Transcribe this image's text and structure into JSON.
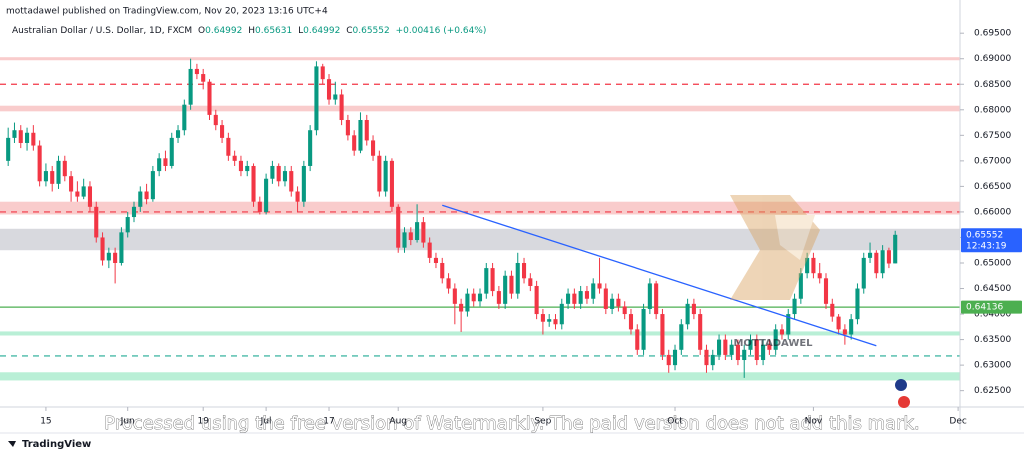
{
  "header": {
    "published": "mottadawel published on TradingView.com, Nov 20, 2023 13:16 UTC+4",
    "logo": "TradingView",
    "watermark": "Processed using the free version of Watermarkly. The paid version does not add this mark."
  },
  "chart_data": {
    "type": "candlestick",
    "symbol": "Australian Dollar / U.S. Dollar, 1D, FXCM",
    "ohlc_letters": [
      "O",
      "H",
      "L",
      "C"
    ],
    "change_label": "+0.00416 (+0.64%)",
    "brand": "MOTTADAWEL",
    "up_color": "#089981",
    "down_color": "#f23645",
    "xlim": [
      -1.3,
      151.3
    ],
    "xticks": [
      {
        "value": 6,
        "label": "15"
      },
      {
        "value": 19,
        "label": "Jun"
      },
      {
        "value": 31,
        "label": "19"
      },
      {
        "value": 41,
        "label": "Jul"
      },
      {
        "value": 51,
        "label": "17"
      },
      {
        "value": 62,
        "label": "Aug"
      },
      {
        "value": 85,
        "label": "Sep"
      },
      {
        "value": 106,
        "label": "Oct"
      },
      {
        "value": 128,
        "label": "Nov"
      },
      {
        "value": 151,
        "label": "Dec"
      }
    ],
    "ylim": [
      0.6218,
      0.7015
    ],
    "yticks": [
      {
        "value": 0.625,
        "label": "0.62500"
      },
      {
        "value": 0.63,
        "label": "0.63000"
      },
      {
        "value": 0.635,
        "label": "0.63500"
      },
      {
        "value": 0.64,
        "label": "0.64000"
      },
      {
        "value": 0.645,
        "label": "0.64500"
      },
      {
        "value": 0.65,
        "label": "0.65000"
      },
      {
        "value": 0.655,
        "label": "0.65500"
      },
      {
        "value": 0.66,
        "label": "0.66000"
      },
      {
        "value": 0.665,
        "label": "0.66500"
      },
      {
        "value": 0.67,
        "label": "0.67000"
      },
      {
        "value": 0.675,
        "label": "0.67500"
      },
      {
        "value": 0.68,
        "label": "0.68000"
      },
      {
        "value": 0.685,
        "label": "0.68500"
      },
      {
        "value": 0.69,
        "label": "0.69000"
      },
      {
        "value": 0.695,
        "label": "0.69500"
      }
    ],
    "zones": [
      {
        "from": 0.6897,
        "to": 0.6903,
        "color": "#f9cccc"
      },
      {
        "from": 0.6797,
        "to": 0.6808,
        "color": "#f9cccc"
      },
      {
        "from": 0.6595,
        "to": 0.662,
        "color": "#f9cccc"
      },
      {
        "from": 0.6525,
        "to": 0.6567,
        "color": "#d8d9de"
      },
      {
        "from": 0.6358,
        "to": 0.6366,
        "color": "#b9efd6"
      },
      {
        "from": 0.627,
        "to": 0.6286,
        "color": "#b9efd6"
      }
    ],
    "levels": [
      {
        "value": 0.685,
        "color": "#f23645",
        "dashed": true
      },
      {
        "value": 0.66,
        "color": "#f23645",
        "dashed": true
      },
      {
        "value": 0.64136,
        "color": "#4caf50",
        "dashed": false
      },
      {
        "value": 0.6318,
        "color": "#22ab94",
        "dashed": true
      }
    ],
    "trendline": {
      "x": [
        69,
        138
      ],
      "y": [
        0.6613,
        0.6338
      ],
      "color": "#2962ff"
    },
    "price_labels": [
      {
        "value": 0.65552,
        "countdown": "12:43:19",
        "color": "#2962ff"
      },
      {
        "value": 0.64136,
        "color": "#4caf50"
      }
    ],
    "candles": [
      [
        0.67,
        0.6765,
        0.669,
        0.6745
      ],
      [
        0.6745,
        0.6775,
        0.6735,
        0.676
      ],
      [
        0.676,
        0.677,
        0.6725,
        0.6735
      ],
      [
        0.6735,
        0.6765,
        0.672,
        0.6755
      ],
      [
        0.6755,
        0.677,
        0.672,
        0.673
      ],
      [
        0.673,
        0.674,
        0.665,
        0.666
      ],
      [
        0.666,
        0.6695,
        0.665,
        0.668
      ],
      [
        0.668,
        0.669,
        0.664,
        0.6655
      ],
      [
        0.6655,
        0.671,
        0.6645,
        0.67
      ],
      [
        0.67,
        0.671,
        0.666,
        0.667
      ],
      [
        0.667,
        0.668,
        0.662,
        0.664
      ],
      [
        0.664,
        0.666,
        0.662,
        0.663
      ],
      [
        0.663,
        0.6665,
        0.6625,
        0.665
      ],
      [
        0.665,
        0.666,
        0.66,
        0.661
      ],
      [
        0.661,
        0.662,
        0.654,
        0.655
      ],
      [
        0.655,
        0.656,
        0.6495,
        0.6505
      ],
      [
        0.6505,
        0.653,
        0.649,
        0.652
      ],
      [
        0.652,
        0.653,
        0.646,
        0.65
      ],
      [
        0.65,
        0.657,
        0.6495,
        0.656
      ],
      [
        0.656,
        0.66,
        0.655,
        0.659
      ],
      [
        0.659,
        0.662,
        0.658,
        0.661
      ],
      [
        0.661,
        0.665,
        0.66,
        0.664
      ],
      [
        0.664,
        0.6655,
        0.6615,
        0.6625
      ],
      [
        0.6625,
        0.669,
        0.662,
        0.668
      ],
      [
        0.668,
        0.6715,
        0.667,
        0.6705
      ],
      [
        0.6705,
        0.672,
        0.668,
        0.669
      ],
      [
        0.669,
        0.6755,
        0.6685,
        0.6745
      ],
      [
        0.6745,
        0.677,
        0.6735,
        0.676
      ],
      [
        0.676,
        0.682,
        0.675,
        0.681
      ],
      [
        0.681,
        0.69,
        0.68,
        0.688
      ],
      [
        0.688,
        0.689,
        0.686,
        0.687
      ],
      [
        0.687,
        0.688,
        0.684,
        0.6855
      ],
      [
        0.6855,
        0.686,
        0.678,
        0.679
      ],
      [
        0.679,
        0.68,
        0.676,
        0.677
      ],
      [
        0.677,
        0.678,
        0.6735,
        0.6745
      ],
      [
        0.6745,
        0.6755,
        0.67,
        0.671
      ],
      [
        0.671,
        0.672,
        0.669,
        0.67
      ],
      [
        0.67,
        0.671,
        0.667,
        0.668
      ],
      [
        0.668,
        0.67,
        0.667,
        0.669
      ],
      [
        0.669,
        0.6695,
        0.661,
        0.662
      ],
      [
        0.662,
        0.663,
        0.6595,
        0.66
      ],
      [
        0.66,
        0.6675,
        0.6595,
        0.6665
      ],
      [
        0.6665,
        0.67,
        0.6655,
        0.669
      ],
      [
        0.669,
        0.6695,
        0.665,
        0.666
      ],
      [
        0.666,
        0.669,
        0.665,
        0.668
      ],
      [
        0.668,
        0.669,
        0.663,
        0.664
      ],
      [
        0.664,
        0.665,
        0.66,
        0.662
      ],
      [
        0.662,
        0.67,
        0.661,
        0.669
      ],
      [
        0.669,
        0.677,
        0.668,
        0.676
      ],
      [
        0.676,
        0.6895,
        0.675,
        0.6885
      ],
      [
        0.6885,
        0.689,
        0.685,
        0.686
      ],
      [
        0.686,
        0.687,
        0.681,
        0.682
      ],
      [
        0.682,
        0.6855,
        0.681,
        0.683
      ],
      [
        0.683,
        0.684,
        0.677,
        0.678
      ],
      [
        0.678,
        0.679,
        0.674,
        0.675
      ],
      [
        0.675,
        0.676,
        0.671,
        0.672
      ],
      [
        0.672,
        0.6795,
        0.6715,
        0.678
      ],
      [
        0.678,
        0.679,
        0.673,
        0.674
      ],
      [
        0.674,
        0.675,
        0.67,
        0.671
      ],
      [
        0.671,
        0.672,
        0.663,
        0.664
      ],
      [
        0.664,
        0.671,
        0.663,
        0.67
      ],
      [
        0.67,
        0.6705,
        0.66,
        0.661
      ],
      [
        0.661,
        0.6615,
        0.652,
        0.653
      ],
      [
        0.653,
        0.657,
        0.652,
        0.656
      ],
      [
        0.656,
        0.657,
        0.6535,
        0.6545
      ],
      [
        0.6545,
        0.6615,
        0.654,
        0.658
      ],
      [
        0.658,
        0.659,
        0.653,
        0.654
      ],
      [
        0.654,
        0.655,
        0.65,
        0.651
      ],
      [
        0.651,
        0.652,
        0.649,
        0.65
      ],
      [
        0.65,
        0.651,
        0.646,
        0.647
      ],
      [
        0.647,
        0.648,
        0.644,
        0.645
      ],
      [
        0.645,
        0.646,
        0.638,
        0.642
      ],
      [
        0.642,
        0.643,
        0.6365,
        0.6405
      ],
      [
        0.6405,
        0.645,
        0.6395,
        0.644
      ],
      [
        0.644,
        0.645,
        0.6415,
        0.6425
      ],
      [
        0.6425,
        0.645,
        0.6415,
        0.644
      ],
      [
        0.644,
        0.65,
        0.643,
        0.649
      ],
      [
        0.649,
        0.65,
        0.6435,
        0.6445
      ],
      [
        0.6445,
        0.6455,
        0.641,
        0.642
      ],
      [
        0.642,
        0.6485,
        0.641,
        0.6475
      ],
      [
        0.6475,
        0.6485,
        0.643,
        0.644
      ],
      [
        0.644,
        0.652,
        0.643,
        0.65
      ],
      [
        0.65,
        0.651,
        0.646,
        0.647
      ],
      [
        0.647,
        0.648,
        0.6445,
        0.6455
      ],
      [
        0.6455,
        0.6465,
        0.639,
        0.64
      ],
      [
        0.64,
        0.641,
        0.636,
        0.6385
      ],
      [
        0.6385,
        0.64,
        0.6375,
        0.639
      ],
      [
        0.639,
        0.64,
        0.637,
        0.638
      ],
      [
        0.638,
        0.643,
        0.637,
        0.642
      ],
      [
        0.642,
        0.645,
        0.641,
        0.644
      ],
      [
        0.644,
        0.645,
        0.641,
        0.642
      ],
      [
        0.642,
        0.6455,
        0.641,
        0.6445
      ],
      [
        0.6445,
        0.6455,
        0.642,
        0.643
      ],
      [
        0.643,
        0.647,
        0.642,
        0.646
      ],
      [
        0.646,
        0.651,
        0.644,
        0.645
      ],
      [
        0.645,
        0.646,
        0.64,
        0.641
      ],
      [
        0.641,
        0.644,
        0.64,
        0.643
      ],
      [
        0.643,
        0.644,
        0.6405,
        0.6415
      ],
      [
        0.6415,
        0.6425,
        0.639,
        0.64
      ],
      [
        0.64,
        0.641,
        0.636,
        0.637
      ],
      [
        0.637,
        0.638,
        0.632,
        0.633
      ],
      [
        0.633,
        0.642,
        0.632,
        0.641
      ],
      [
        0.641,
        0.647,
        0.64,
        0.646
      ],
      [
        0.646,
        0.6465,
        0.639,
        0.64
      ],
      [
        0.64,
        0.641,
        0.631,
        0.632
      ],
      [
        0.632,
        0.633,
        0.6285,
        0.63
      ],
      [
        0.63,
        0.634,
        0.629,
        0.633
      ],
      [
        0.633,
        0.639,
        0.632,
        0.638
      ],
      [
        0.638,
        0.643,
        0.637,
        0.642
      ],
      [
        0.642,
        0.643,
        0.639,
        0.64
      ],
      [
        0.64,
        0.641,
        0.632,
        0.633
      ],
      [
        0.633,
        0.634,
        0.6285,
        0.63
      ],
      [
        0.63,
        0.633,
        0.629,
        0.632
      ],
      [
        0.632,
        0.636,
        0.631,
        0.635
      ],
      [
        0.635,
        0.636,
        0.631,
        0.632
      ],
      [
        0.632,
        0.635,
        0.631,
        0.634
      ],
      [
        0.634,
        0.635,
        0.63,
        0.631
      ],
      [
        0.631,
        0.634,
        0.6275,
        0.633
      ],
      [
        0.633,
        0.636,
        0.632,
        0.635
      ],
      [
        0.635,
        0.636,
        0.63,
        0.631
      ],
      [
        0.631,
        0.635,
        0.63,
        0.634
      ],
      [
        0.634,
        0.635,
        0.632,
        0.633
      ],
      [
        0.633,
        0.638,
        0.632,
        0.637
      ],
      [
        0.637,
        0.638,
        0.635,
        0.636
      ],
      [
        0.636,
        0.641,
        0.635,
        0.64
      ],
      [
        0.64,
        0.644,
        0.639,
        0.643
      ],
      [
        0.643,
        0.649,
        0.642,
        0.648
      ],
      [
        0.648,
        0.652,
        0.647,
        0.651
      ],
      [
        0.651,
        0.652,
        0.647,
        0.648
      ],
      [
        0.648,
        0.65,
        0.646,
        0.647
      ],
      [
        0.647,
        0.648,
        0.641,
        0.642
      ],
      [
        0.642,
        0.643,
        0.6385,
        0.6395
      ],
      [
        0.6395,
        0.64,
        0.636,
        0.637
      ],
      [
        0.637,
        0.638,
        0.634,
        0.636
      ],
      [
        0.636,
        0.64,
        0.635,
        0.639
      ],
      [
        0.639,
        0.646,
        0.638,
        0.645
      ],
      [
        0.645,
        0.652,
        0.644,
        0.651
      ],
      [
        0.651,
        0.654,
        0.65,
        0.652
      ],
      [
        0.652,
        0.6525,
        0.647,
        0.648
      ],
      [
        0.648,
        0.6535,
        0.647,
        0.6525
      ],
      [
        0.6525,
        0.653,
        0.649,
        0.6499
      ],
      [
        0.64992,
        0.65631,
        0.64992,
        0.65552
      ]
    ]
  }
}
